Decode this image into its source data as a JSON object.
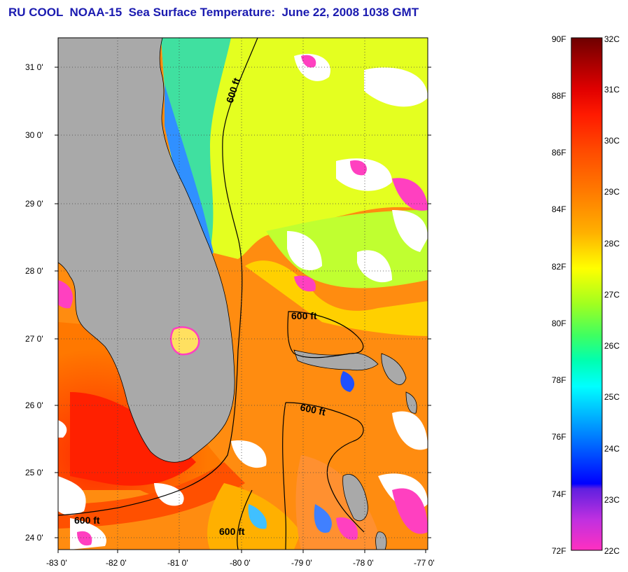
{
  "title": "RU COOL  NOAA-15  Sea Surface Temperature:  June 22, 2008 1038 GMT",
  "map": {
    "lat_labels": [
      "31 0'",
      "30 0'",
      "29 0'",
      "28 0'",
      "27 0'",
      "26 0'",
      "25 0'",
      "24 0'"
    ],
    "lon_labels": [
      "-83 0'",
      "-82 0'",
      "-81 0'",
      "-80 0'",
      "-79 0'",
      "-78 0'",
      "-77 0'"
    ],
    "contour_labels": [
      "600 ft",
      "600 ft",
      "600 ft",
      "600 ft",
      "600 ft"
    ],
    "colors": {
      "land": "#aaaaaa",
      "cloud": "#ffffff"
    }
  },
  "colorbar": {
    "f_labels": [
      "90F",
      "88F",
      "86F",
      "84F",
      "82F",
      "80F",
      "78F",
      "76F",
      "74F",
      "72F"
    ],
    "c_labels": [
      "32C",
      "31C",
      "30C",
      "29C",
      "28C",
      "27C",
      "26C",
      "25C",
      "24C",
      "23C",
      "22C"
    ]
  }
}
